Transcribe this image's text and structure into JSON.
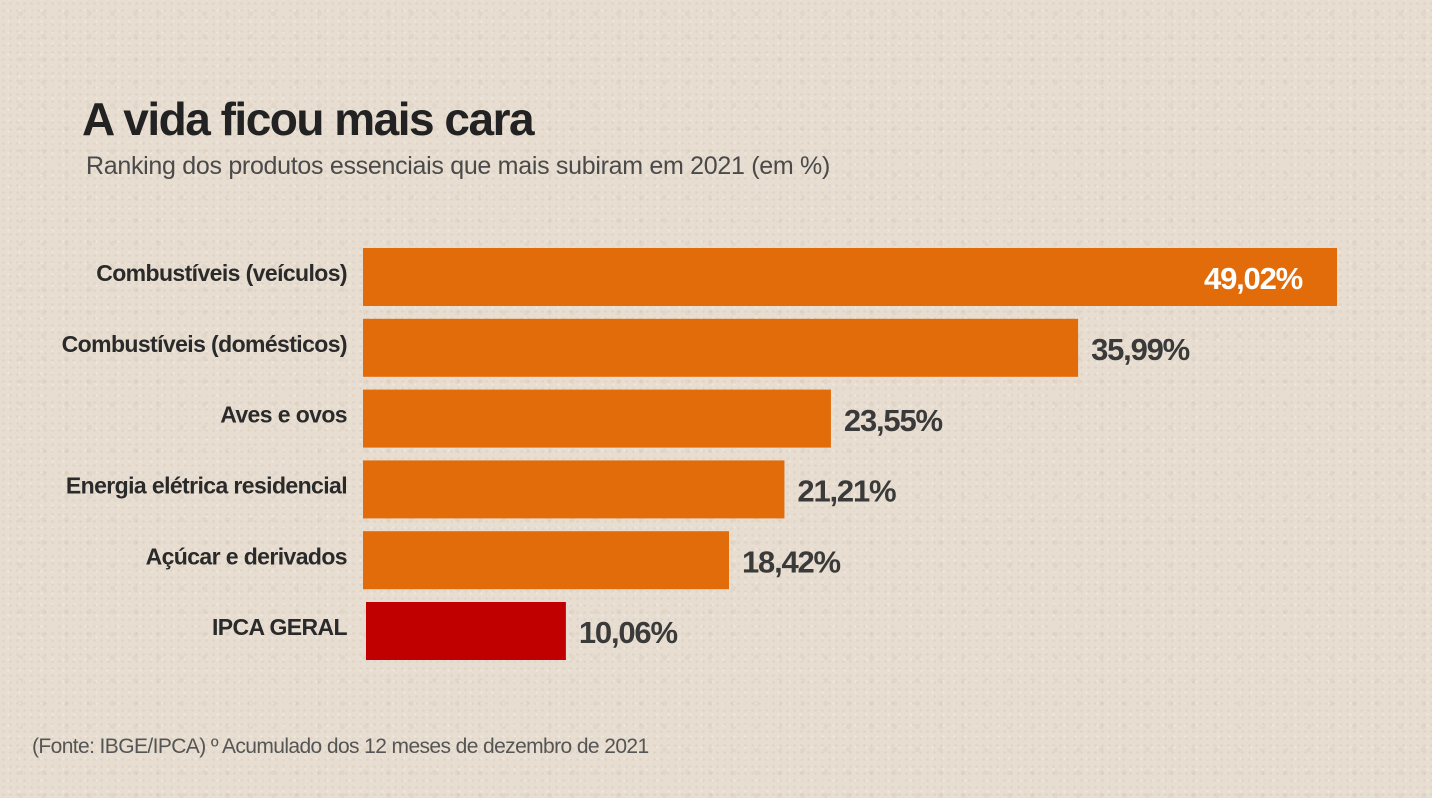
{
  "chart_data": {
    "type": "bar",
    "orientation": "horizontal",
    "title": "A vida ficou mais cara",
    "subtitle": "Ranking dos produtos essenciais que mais subiram em 2021 (em %)",
    "categories": [
      "Combustíveis (veículos)",
      "Combustíveis (domésticos)",
      "Aves e ovos",
      "Energia elétrica residencial",
      "Açúcar e derivados",
      "IPCA GERAL"
    ],
    "values": [
      49.02,
      35.99,
      23.55,
      21.21,
      18.42,
      10.06
    ],
    "data_labels": [
      "49,02%",
      "35,99%",
      "23,55%",
      "21,21%",
      "18,42%",
      "10,06%"
    ],
    "colors": [
      "#e36c0a",
      "#e36c0a",
      "#e36c0a",
      "#e36c0a",
      "#e36c0a",
      "#c00000"
    ],
    "value_label_colors": [
      "#ffffff",
      "#3a3a3a",
      "#3a3a3a",
      "#3a3a3a",
      "#3a3a3a",
      "#3a3a3a"
    ],
    "xlim": [
      0,
      49.02
    ],
    "grid": false,
    "legend": "none"
  },
  "footer": {
    "source": "(Fonte: IBGE/IPCA) º Acumulado dos 12 meses de dezembro de 2021"
  }
}
